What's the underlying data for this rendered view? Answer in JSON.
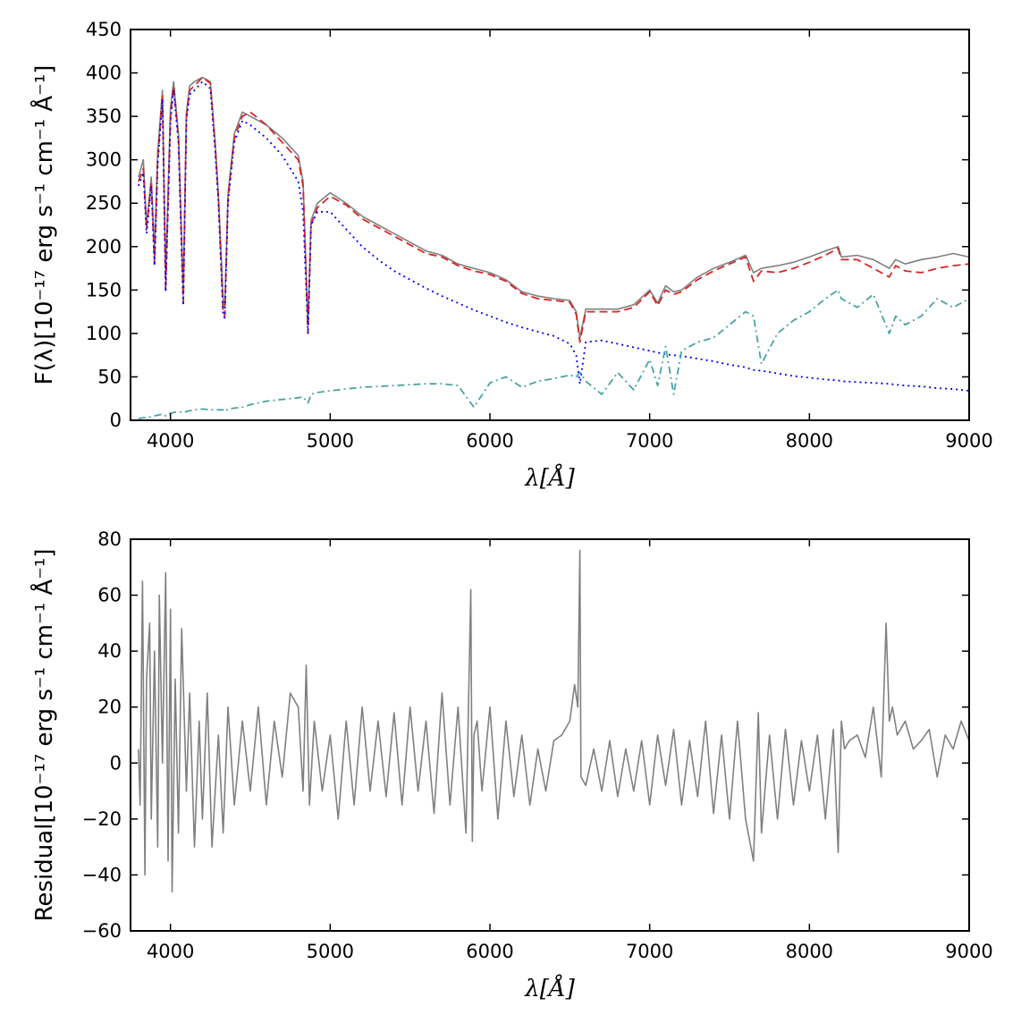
{
  "chart_data": [
    {
      "type": "line",
      "title": "",
      "xlabel": "λ[Å]",
      "ylabel": "F(λ)[10⁻¹⁷ erg s⁻¹ cm⁻¹ Å⁻¹]",
      "xlim": [
        3750,
        9000
      ],
      "ylim": [
        0,
        450
      ],
      "xticks": [
        4000,
        5000,
        6000,
        7000,
        8000,
        9000
      ],
      "yticks": [
        0,
        50,
        100,
        150,
        200,
        250,
        300,
        350,
        400,
        450
      ],
      "grid": false,
      "legend": "none",
      "x": [
        3800,
        3830,
        3850,
        3880,
        3900,
        3920,
        3950,
        3970,
        4000,
        4020,
        4050,
        4080,
        4100,
        4120,
        4150,
        4200,
        4250,
        4280,
        4300,
        4330,
        4340,
        4360,
        4400,
        4450,
        4500,
        4600,
        4700,
        4800,
        4830,
        4861,
        4880,
        4920,
        5000,
        5100,
        5200,
        5300,
        5400,
        5500,
        5600,
        5700,
        5800,
        5900,
        6000,
        6100,
        6200,
        6300,
        6400,
        6500,
        6540,
        6563,
        6600,
        6700,
        6800,
        6900,
        7000,
        7050,
        7100,
        7150,
        7200,
        7300,
        7400,
        7500,
        7600,
        7650,
        7700,
        7800,
        7900,
        8000,
        8100,
        8180,
        8200,
        8300,
        8400,
        8500,
        8540,
        8600,
        8700,
        8800,
        8900,
        9000
      ],
      "series": [
        {
          "role": "observed",
          "color": "#808080",
          "dash": "solid",
          "values": [
            280,
            300,
            225,
            280,
            195,
            310,
            380,
            170,
            360,
            390,
            330,
            150,
            355,
            385,
            390,
            395,
            390,
            320,
            260,
            140,
            130,
            260,
            330,
            355,
            350,
            340,
            325,
            305,
            275,
            110,
            230,
            250,
            262,
            250,
            235,
            225,
            215,
            205,
            195,
            190,
            180,
            175,
            170,
            162,
            148,
            143,
            140,
            138,
            125,
            95,
            128,
            128,
            128,
            133,
            150,
            135,
            155,
            148,
            150,
            165,
            175,
            182,
            190,
            170,
            175,
            178,
            182,
            188,
            195,
            200,
            188,
            190,
            185,
            175,
            185,
            180,
            185,
            188,
            192,
            188
          ]
        },
        {
          "role": "model",
          "color": "#d62728",
          "dash": "dashed",
          "values": [
            275,
            290,
            220,
            275,
            180,
            300,
            375,
            150,
            350,
            385,
            325,
            135,
            350,
            380,
            385,
            395,
            388,
            315,
            255,
            125,
            120,
            255,
            325,
            350,
            355,
            340,
            320,
            300,
            270,
            100,
            225,
            245,
            258,
            248,
            232,
            222,
            212,
            202,
            192,
            188,
            178,
            172,
            168,
            160,
            146,
            140,
            138,
            136,
            122,
            90,
            125,
            125,
            125,
            130,
            148,
            132,
            150,
            145,
            148,
            162,
            172,
            180,
            188,
            160,
            172,
            170,
            175,
            182,
            190,
            198,
            185,
            185,
            175,
            165,
            178,
            172,
            170,
            175,
            178,
            180
          ]
        },
        {
          "role": "component-1",
          "color": "#0000ff",
          "dash": "dotted",
          "values": [
            270,
            285,
            215,
            270,
            178,
            295,
            370,
            148,
            345,
            380,
            320,
            132,
            345,
            375,
            380,
            390,
            382,
            310,
            250,
            120,
            118,
            250,
            320,
            345,
            340,
            325,
            305,
            275,
            240,
            100,
            225,
            240,
            240,
            220,
            200,
            185,
            172,
            162,
            152,
            143,
            135,
            127,
            120,
            113,
            107,
            102,
            97,
            88,
            75,
            42,
            90,
            92,
            88,
            84,
            80,
            78,
            76,
            75,
            74,
            71,
            68,
            64,
            61,
            58,
            57,
            54,
            51,
            49,
            47,
            46,
            45,
            44,
            43,
            42,
            41,
            40,
            39,
            37,
            36,
            34
          ]
        },
        {
          "role": "component-2",
          "color": "#4aa3a3",
          "dash": "dashdot",
          "values": [
            2,
            3,
            3,
            4,
            5,
            6,
            7,
            5,
            8,
            9,
            10,
            9,
            10,
            11,
            12,
            13,
            12,
            12,
            12,
            12,
            10,
            13,
            14,
            15,
            18,
            22,
            24,
            26,
            27,
            20,
            30,
            32,
            34,
            36,
            38,
            39,
            40,
            41,
            42,
            42,
            40,
            15,
            43,
            50,
            38,
            45,
            48,
            52,
            50,
            55,
            45,
            30,
            55,
            35,
            70,
            40,
            85,
            30,
            80,
            90,
            95,
            110,
            125,
            120,
            65,
            100,
            115,
            125,
            140,
            150,
            140,
            130,
            145,
            100,
            120,
            110,
            120,
            140,
            130,
            140
          ]
        }
      ]
    },
    {
      "type": "line",
      "title": "",
      "xlabel": "λ[Å]",
      "ylabel": "Residual[10⁻¹⁷ erg s⁻¹ cm⁻¹ Å⁻¹]",
      "xlim": [
        3750,
        9000
      ],
      "ylim": [
        -60,
        80
      ],
      "xticks": [
        4000,
        5000,
        6000,
        7000,
        8000,
        9000
      ],
      "yticks": [
        -60,
        -40,
        -20,
        0,
        20,
        40,
        60,
        80
      ],
      "grid": false,
      "legend": "none",
      "series": [
        {
          "role": "residual",
          "color": "#808080",
          "dash": "solid",
          "x": [
            3800,
            3810,
            3825,
            3840,
            3850,
            3870,
            3880,
            3900,
            3920,
            3930,
            3950,
            3970,
            3985,
            4000,
            4010,
            4030,
            4050,
            4070,
            4100,
            4120,
            4150,
            4180,
            4200,
            4230,
            4260,
            4300,
            4330,
            4360,
            4400,
            4450,
            4500,
            4550,
            4600,
            4650,
            4700,
            4750,
            4800,
            4830,
            4850,
            4870,
            4900,
            4950,
            5000,
            5050,
            5100,
            5150,
            5200,
            5250,
            5300,
            5350,
            5400,
            5450,
            5500,
            5550,
            5600,
            5650,
            5700,
            5750,
            5800,
            5850,
            5880,
            5890,
            5900,
            5920,
            5950,
            6000,
            6050,
            6100,
            6150,
            6200,
            6250,
            6300,
            6350,
            6400,
            6450,
            6500,
            6530,
            6550,
            6563,
            6570,
            6600,
            6650,
            6700,
            6750,
            6800,
            6850,
            6900,
            6950,
            7000,
            7050,
            7100,
            7150,
            7200,
            7250,
            7300,
            7350,
            7400,
            7450,
            7500,
            7550,
            7600,
            7650,
            7680,
            7700,
            7750,
            7800,
            7850,
            7900,
            7950,
            8000,
            8050,
            8100,
            8150,
            8180,
            8200,
            8220,
            8250,
            8300,
            8350,
            8400,
            8450,
            8480,
            8500,
            8520,
            8550,
            8600,
            8650,
            8700,
            8750,
            8800,
            8850,
            8900,
            8950,
            9000
          ],
          "values": [
            5,
            -15,
            65,
            -40,
            30,
            50,
            -20,
            40,
            -30,
            60,
            0,
            68,
            -35,
            55,
            -46,
            30,
            -25,
            48,
            -10,
            25,
            -30,
            15,
            -20,
            25,
            -30,
            10,
            -25,
            20,
            -15,
            15,
            -10,
            20,
            -15,
            15,
            -5,
            25,
            20,
            -10,
            35,
            -15,
            15,
            -10,
            10,
            -20,
            15,
            -15,
            20,
            -10,
            15,
            -12,
            18,
            -15,
            20,
            -10,
            15,
            -18,
            25,
            -15,
            20,
            -25,
            62,
            -28,
            10,
            15,
            -10,
            20,
            -20,
            15,
            -12,
            10,
            -15,
            5,
            -10,
            8,
            10,
            15,
            28,
            20,
            76,
            -5,
            -8,
            5,
            -10,
            8,
            -12,
            5,
            -10,
            8,
            -15,
            10,
            -8,
            12,
            -15,
            8,
            -12,
            15,
            -18,
            10,
            -20,
            15,
            -20,
            -35,
            18,
            -25,
            10,
            -20,
            12,
            -15,
            8,
            -10,
            10,
            -20,
            12,
            -32,
            15,
            5,
            8,
            10,
            2,
            20,
            -5,
            50,
            15,
            20,
            10,
            15,
            5,
            8,
            12,
            -5,
            10,
            5,
            15,
            8
          ]
        }
      ]
    }
  ]
}
